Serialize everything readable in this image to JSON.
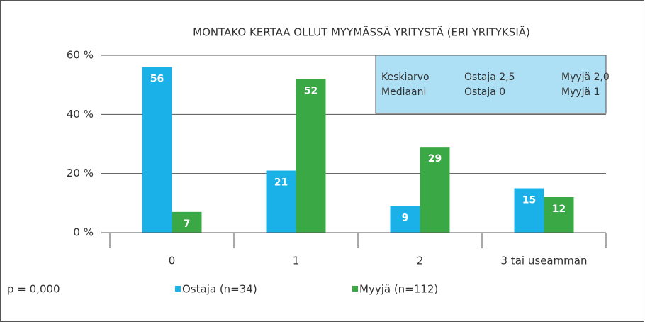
{
  "chart_data": {
    "type": "bar",
    "title": "MONTAKO KERTAA OLLUT MYYMÄSSÄ YRITYSTÄ (ERI YRITYKSIÄ)",
    "categories": [
      "0",
      "1",
      "2",
      "3 tai useamman"
    ],
    "series": [
      {
        "name": "Ostaja (n=34)",
        "color": "#1ab0e8",
        "values": [
          56,
          21,
          9,
          15
        ]
      },
      {
        "name": "Myyjä (n=112)",
        "color": "#3aa845",
        "values": [
          7,
          52,
          29,
          12
        ]
      }
    ],
    "ylim": [
      0,
      60
    ],
    "yticks": [
      {
        "value": 0,
        "label": "0 %"
      },
      {
        "value": 20,
        "label": "20 %"
      },
      {
        "value": 40,
        "label": "40 %"
      },
      {
        "value": 60,
        "label": "60 %"
      }
    ],
    "grid": true,
    "legend": "bottom",
    "note": "p = 0,000",
    "stats_box": {
      "color": "#aee0f5",
      "rows": [
        [
          "Keskiarvo",
          "Ostaja 2,5",
          "Myyjä 2,0"
        ],
        [
          "Mediaani",
          "Ostaja 0",
          "Myyjä 1"
        ]
      ]
    }
  }
}
